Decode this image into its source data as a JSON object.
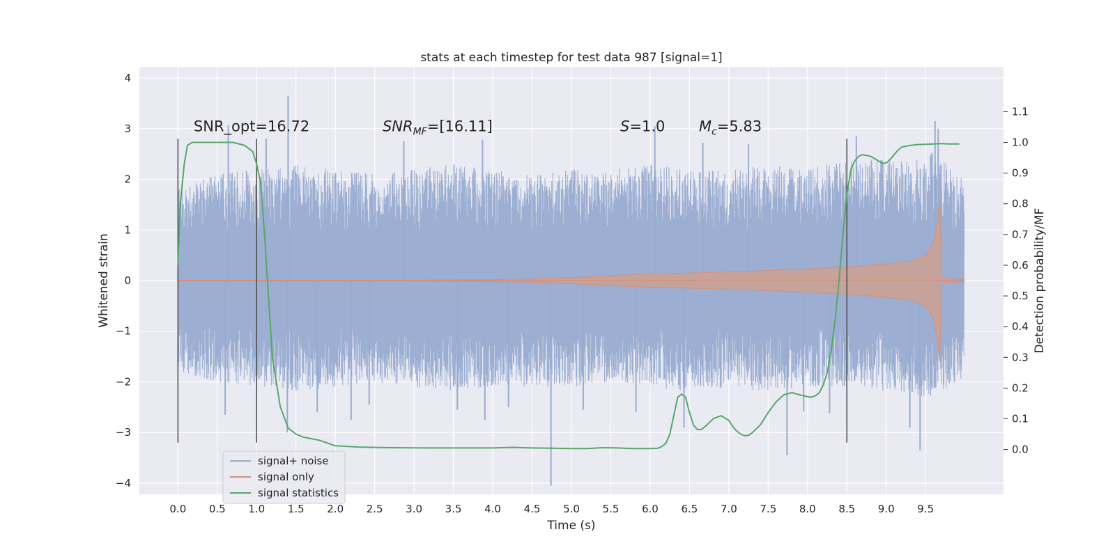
{
  "chart_data": {
    "type": "line",
    "title": "stats at each timestep for test data 987 [signal=1]",
    "xlabel": "Time (s)",
    "ylabel": "Whitened strain",
    "ylabel_right": "Detection probability/MF",
    "xlim": [
      -0.49,
      10.49
    ],
    "ylim": [
      -4.22,
      4.22
    ],
    "ylim_right": [
      -0.146,
      1.246
    ],
    "xticks": [
      0.0,
      0.5,
      1.0,
      1.5,
      2.0,
      2.5,
      3.0,
      3.5,
      4.0,
      4.5,
      5.0,
      5.5,
      6.0,
      6.5,
      7.0,
      7.5,
      8.0,
      8.5,
      9.0,
      9.5
    ],
    "xtick_labels": [
      "0.0",
      "0.5",
      "1.0",
      "1.5",
      "2.0",
      "2.5",
      "3.0",
      "3.5",
      "4.0",
      "4.5",
      "5.0",
      "5.5",
      "6.0",
      "6.5",
      "7.0",
      "7.5",
      "8.0",
      "8.5",
      "9.0",
      "9.5"
    ],
    "yticks": [
      4,
      3,
      2,
      1,
      0,
      -1,
      -2,
      -3,
      -4
    ],
    "ytick_labels": [
      "4",
      "3",
      "2",
      "1",
      "0",
      "−1",
      "−2",
      "−3",
      "−4"
    ],
    "yticks_right": [
      1.1,
      1.0,
      0.9,
      0.8,
      0.7,
      0.6,
      0.5,
      0.4,
      0.3,
      0.2,
      0.1,
      0.0
    ],
    "ytick_labels_right": [
      "1.1",
      "1.0",
      "0.9",
      "0.8",
      "0.7",
      "0.6",
      "0.5",
      "0.4",
      "0.3",
      "0.2",
      "0.1",
      "0.0"
    ],
    "grid": true,
    "legend_position": "lower-left",
    "colors": {
      "background": "#eaeaf2",
      "grid": "#ffffff",
      "noise": "#98abd0",
      "signal": "#d2917e",
      "signal_fill": "#c8a297",
      "stats": "#55a868",
      "vline": "#4a4a4a"
    },
    "noise_envelope": {
      "x": [
        0.0,
        0.5,
        1.0,
        1.5,
        2.0,
        2.5,
        3.0,
        3.5,
        4.0,
        4.5,
        5.0,
        5.5,
        6.0,
        6.5,
        7.0,
        7.5,
        8.0,
        8.5,
        9.0,
        9.5,
        9.6,
        9.7,
        9.8,
        9.9,
        9.99
      ],
      "upper": [
        1.9,
        2.1,
        2.2,
        2.3,
        2.2,
        2.1,
        2.2,
        2.3,
        2.2,
        2.1,
        2.2,
        2.2,
        2.3,
        2.2,
        2.2,
        2.3,
        2.2,
        2.4,
        2.4,
        2.4,
        2.6,
        2.5,
        2.3,
        2.2,
        2.0
      ],
      "lower": [
        -1.8,
        -2.0,
        -2.1,
        -2.2,
        -2.1,
        -2.0,
        -2.1,
        -2.2,
        -2.1,
        -2.1,
        -2.1,
        -2.0,
        -2.1,
        -2.2,
        -2.1,
        -2.2,
        -2.1,
        -2.1,
        -2.2,
        -2.3,
        -2.3,
        -2.2,
        -2.1,
        -2.0,
        -1.9
      ]
    },
    "noise_spikes": {
      "x": [
        1.4,
        0.64,
        1.12,
        2.87,
        3.87,
        6.06,
        6.67,
        7.25,
        9.62,
        9.66,
        8.62,
        4.74,
        7.74,
        9.43,
        3.9,
        1.39,
        0.6,
        2.2,
        6.43,
        5.82,
        8.28,
        2.43,
        9.3,
        7.95,
        4.2,
        3.55,
        1.77,
        5.15
      ],
      "y": [
        3.65,
        3.07,
        2.8,
        2.75,
        2.78,
        3.05,
        2.72,
        2.7,
        3.15,
        3.0,
        2.85,
        -4.05,
        -3.45,
        -3.35,
        -2.75,
        -3.0,
        -2.65,
        -2.75,
        -2.9,
        -2.6,
        -2.62,
        -2.45,
        -2.9,
        -2.58,
        -2.5,
        -2.55,
        -2.6,
        -2.55
      ]
    },
    "signal_envelope": {
      "x": [
        0.0,
        1.0,
        2.0,
        3.0,
        4.0,
        4.5,
        5.0,
        5.5,
        6.0,
        6.5,
        7.0,
        7.5,
        8.0,
        8.5,
        9.0,
        9.3,
        9.5,
        9.6,
        9.65,
        9.68,
        9.7,
        9.99
      ],
      "upper": [
        0.01,
        0.01,
        0.01,
        0.01,
        0.02,
        0.03,
        0.06,
        0.1,
        0.13,
        0.15,
        0.17,
        0.2,
        0.23,
        0.27,
        0.33,
        0.38,
        0.5,
        0.75,
        1.2,
        1.6,
        0.05,
        0.02
      ],
      "lower": [
        -0.01,
        -0.01,
        -0.01,
        -0.01,
        -0.02,
        -0.03,
        -0.06,
        -0.1,
        -0.13,
        -0.15,
        -0.17,
        -0.2,
        -0.23,
        -0.27,
        -0.33,
        -0.38,
        -0.5,
        -0.75,
        -1.2,
        -1.6,
        -0.05,
        -0.02
      ]
    },
    "series": [
      {
        "name": "signal+ noise",
        "role": "noise"
      },
      {
        "name": "signal only",
        "role": "signal"
      },
      {
        "name": "signal statistics",
        "role": "stats",
        "axis": "right",
        "x": [
          0.0,
          0.03,
          0.08,
          0.12,
          0.18,
          0.3,
          0.5,
          0.7,
          0.85,
          0.95,
          1.0,
          1.05,
          1.1,
          1.15,
          1.2,
          1.3,
          1.4,
          1.5,
          1.6,
          1.8,
          2.0,
          2.3,
          2.7,
          3.2,
          3.6,
          4.0,
          4.25,
          4.5,
          4.75,
          5.0,
          5.2,
          5.4,
          5.6,
          5.8,
          6.0,
          6.1,
          6.15,
          6.2,
          6.25,
          6.3,
          6.35,
          6.4,
          6.45,
          6.5,
          6.55,
          6.6,
          6.65,
          6.7,
          6.8,
          6.9,
          7.0,
          7.05,
          7.1,
          7.15,
          7.2,
          7.25,
          7.3,
          7.4,
          7.5,
          7.6,
          7.7,
          7.8,
          7.9,
          8.0,
          8.05,
          8.1,
          8.15,
          8.2,
          8.25,
          8.3,
          8.35,
          8.4,
          8.45,
          8.5,
          8.55,
          8.6,
          8.65,
          8.7,
          8.8,
          8.9,
          8.95,
          9.0,
          9.05,
          9.1,
          9.15,
          9.2,
          9.3,
          9.4,
          9.5,
          9.6,
          9.7,
          9.8,
          9.93
        ],
        "y": [
          0.6,
          0.8,
          0.93,
          0.99,
          1.0,
          1.0,
          1.0,
          1.0,
          0.99,
          0.97,
          0.93,
          0.87,
          0.7,
          0.5,
          0.3,
          0.14,
          0.07,
          0.05,
          0.04,
          0.03,
          0.012,
          0.008,
          0.006,
          0.005,
          0.005,
          0.005,
          0.007,
          0.005,
          0.004,
          0.003,
          0.003,
          0.006,
          0.005,
          0.003,
          0.003,
          0.004,
          0.01,
          0.02,
          0.05,
          0.11,
          0.17,
          0.18,
          0.17,
          0.12,
          0.08,
          0.065,
          0.065,
          0.075,
          0.1,
          0.11,
          0.095,
          0.075,
          0.06,
          0.05,
          0.045,
          0.046,
          0.055,
          0.08,
          0.12,
          0.155,
          0.178,
          0.185,
          0.178,
          0.172,
          0.17,
          0.175,
          0.185,
          0.21,
          0.25,
          0.32,
          0.42,
          0.55,
          0.7,
          0.83,
          0.91,
          0.94,
          0.955,
          0.96,
          0.955,
          0.94,
          0.932,
          0.933,
          0.945,
          0.96,
          0.975,
          0.985,
          0.99,
          0.993,
          0.994,
          0.995,
          0.996,
          0.995,
          0.995
        ]
      }
    ],
    "vlines": [
      {
        "x": 0.0,
        "y0": -3.2,
        "y1": 2.8
      },
      {
        "x": 1.0,
        "y0": -3.2,
        "y1": 2.8
      },
      {
        "x": 8.5,
        "y0": -3.2,
        "y1": 2.8
      }
    ],
    "annotations": [
      {
        "id": "snr-opt",
        "x": 0.2,
        "y": 2.95,
        "parts": [
          {
            "t": "SNR_opt=16.72"
          }
        ]
      },
      {
        "id": "snr-mf",
        "x": 2.6,
        "y": 2.95,
        "parts": [
          {
            "t": "SNR",
            "i": true
          },
          {
            "t": "MF",
            "i": true,
            "sub": true
          },
          {
            "t": "=[16.11]"
          }
        ]
      },
      {
        "id": "s-value",
        "x": 5.62,
        "y": 2.95,
        "parts": [
          {
            "t": "S",
            "i": true
          },
          {
            "t": "=1.0"
          }
        ]
      },
      {
        "id": "mc-value",
        "x": 6.62,
        "y": 2.95,
        "parts": [
          {
            "t": "M",
            "i": true
          },
          {
            "t": "c",
            "i": true,
            "sub": true
          },
          {
            "t": "=5.83"
          }
        ]
      }
    ]
  }
}
